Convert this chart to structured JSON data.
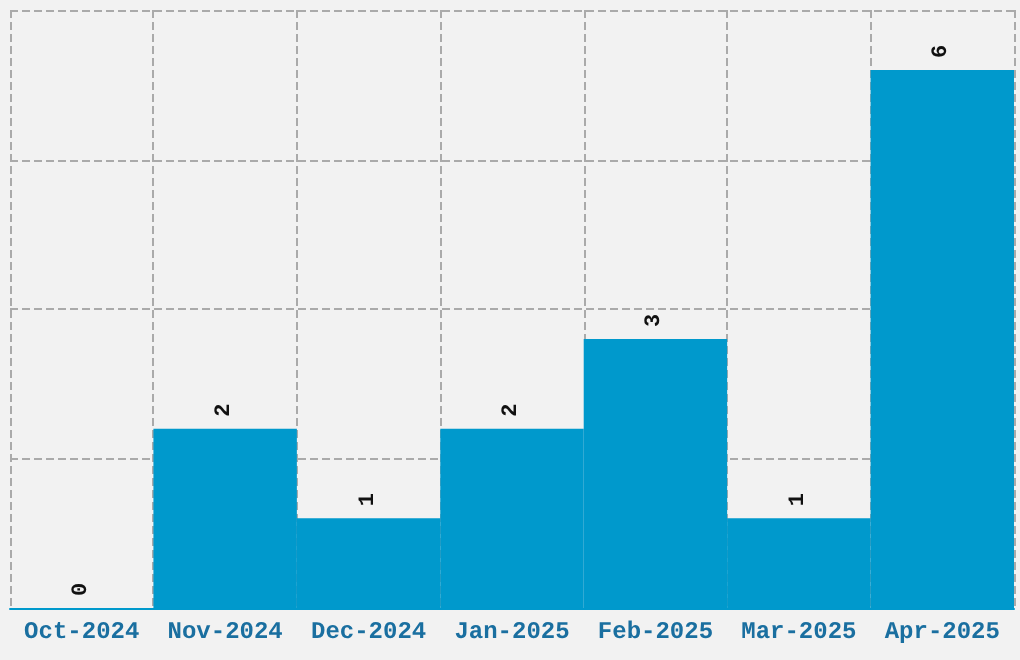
{
  "chart_data": {
    "type": "bar",
    "categories": [
      "Oct-2024",
      "Nov-2024",
      "Dec-2024",
      "Jan-2025",
      "Feb-2025",
      "Mar-2025",
      "Apr-2025"
    ],
    "values": [
      0,
      2,
      1,
      2,
      3,
      1,
      6
    ],
    "color": "#0099cc",
    "ylim": [
      0,
      6.67
    ],
    "yticks": [
      {
        "value": 0,
        "label": null
      },
      {
        "value": 1.67,
        "label": null
      },
      {
        "value": 3.33,
        "label": null
      },
      {
        "value": 5,
        "label": null
      },
      {
        "value": 6.67,
        "label": null
      }
    ],
    "tick_labels": "x",
    "grid": true,
    "data_labels": true
  }
}
